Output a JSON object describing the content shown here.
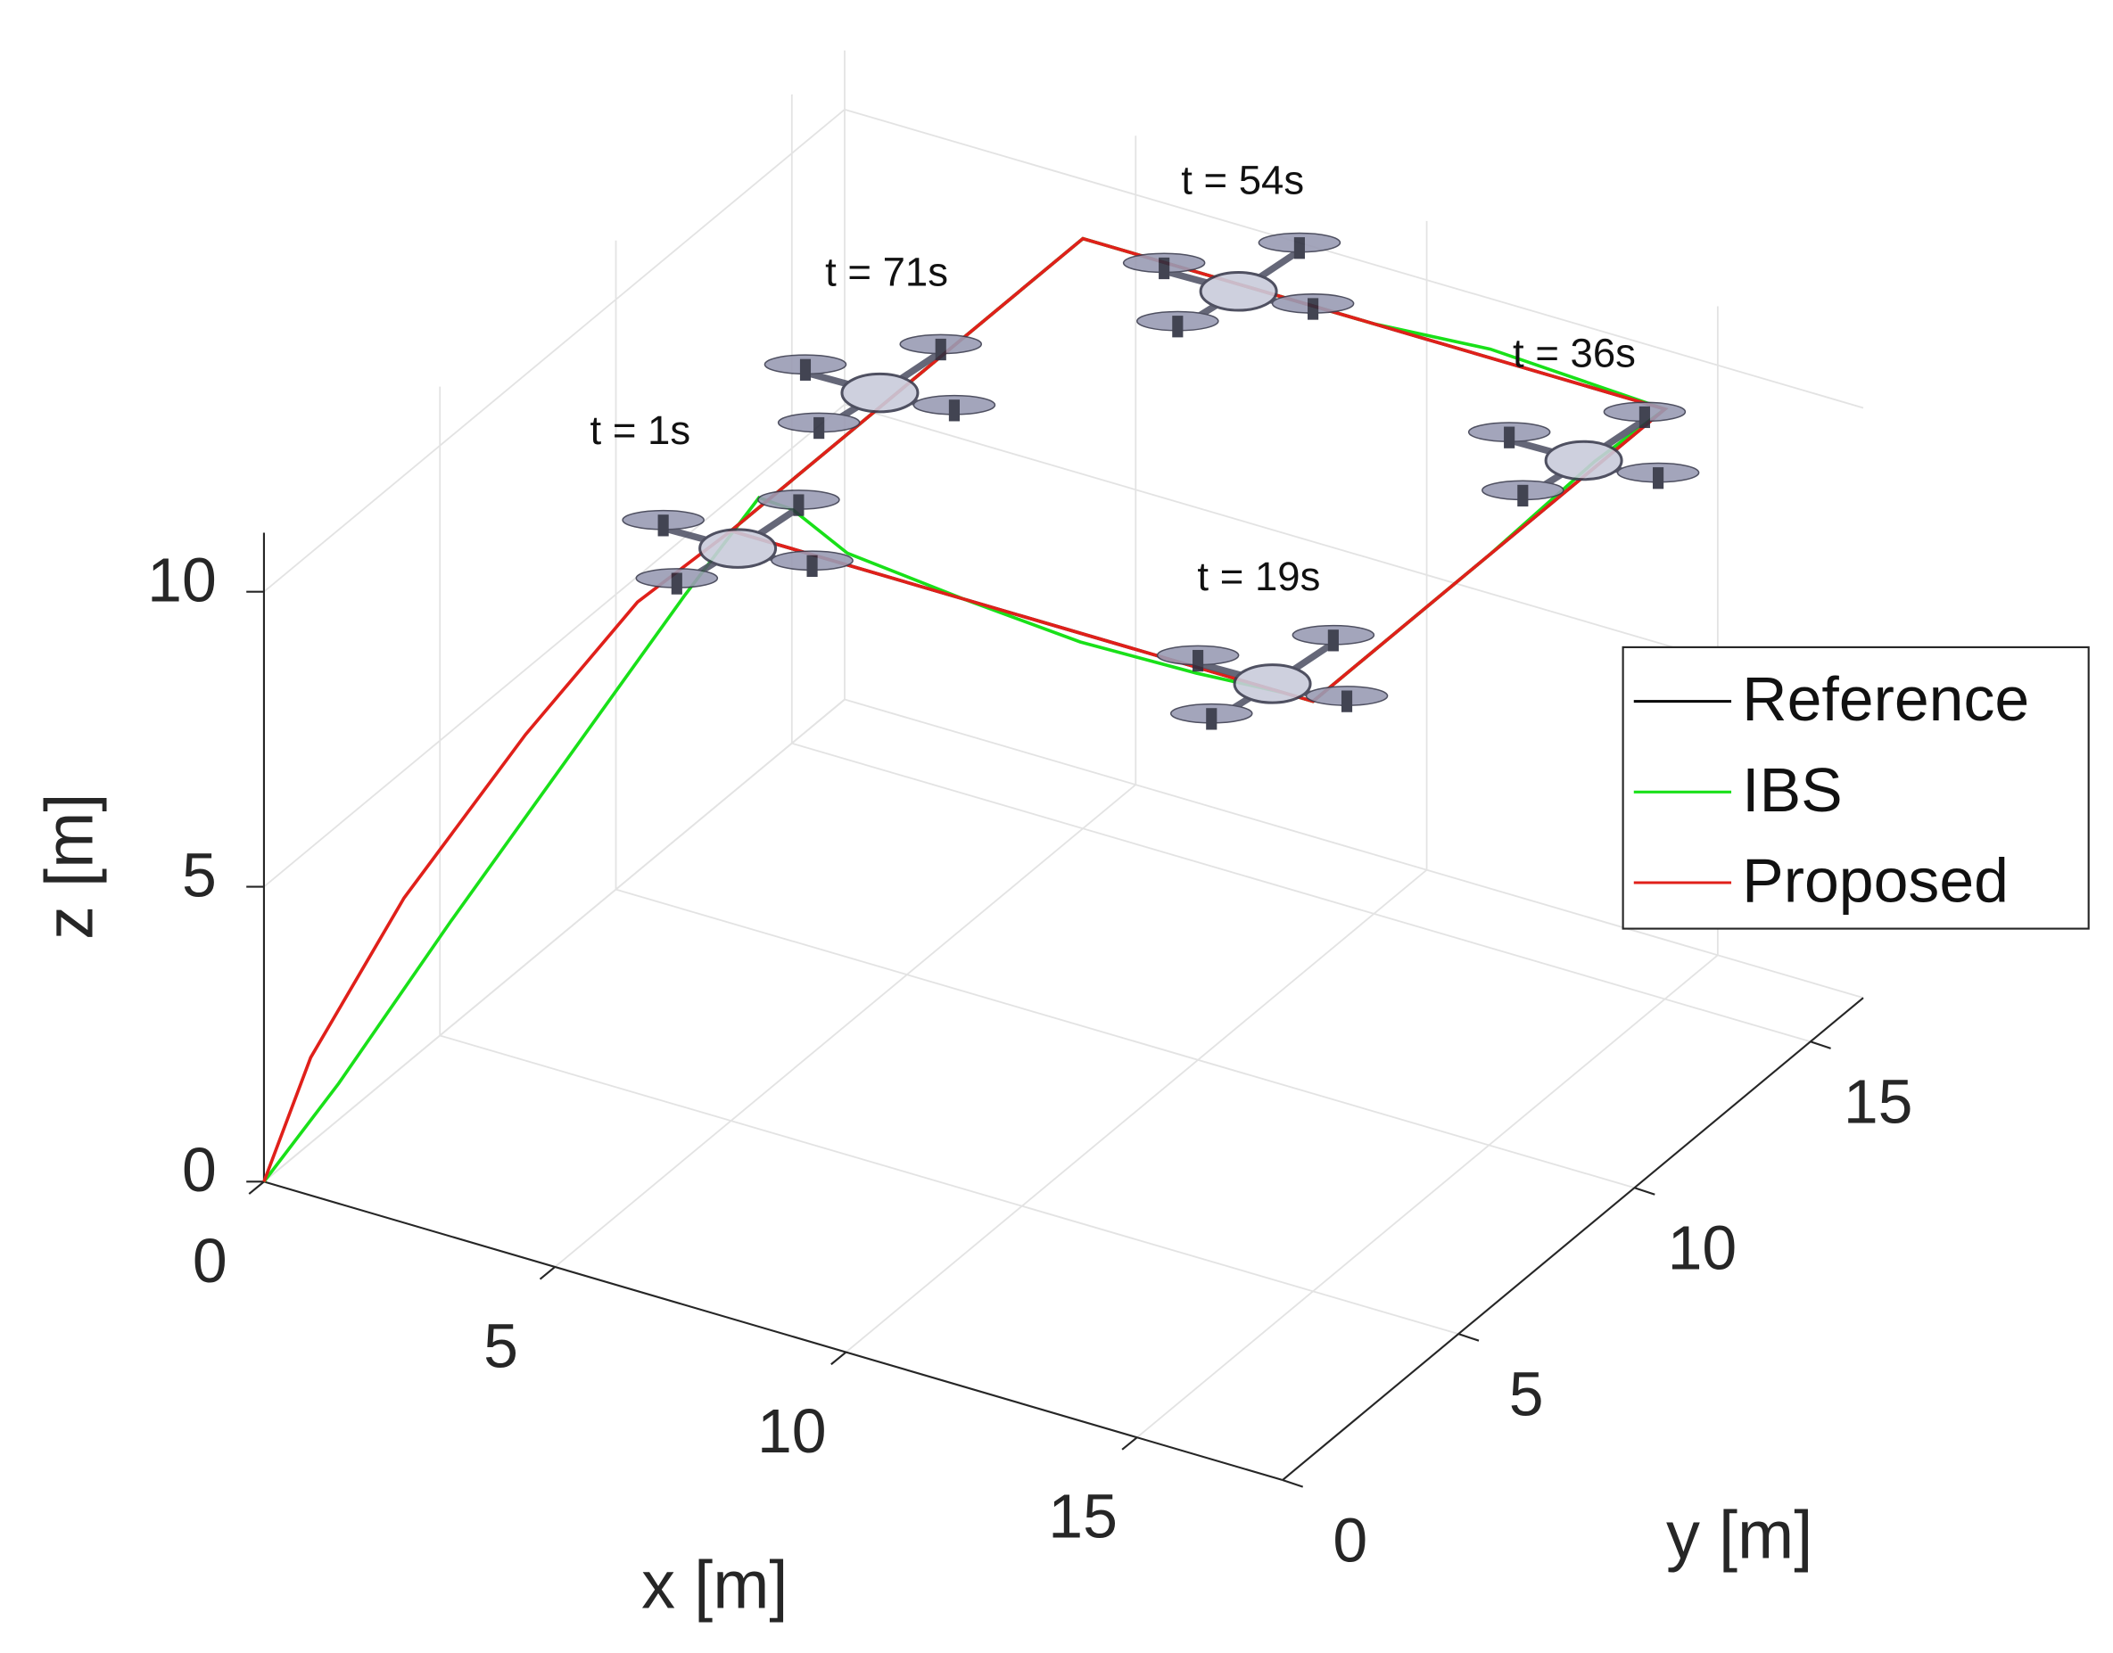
{
  "chart_data": {
    "type": "line3d",
    "xlabel": "x [m]",
    "ylabel": "y [m]",
    "zlabel": "z [m]",
    "xlim": [
      0,
      17.5
    ],
    "ylim": [
      0,
      16.5
    ],
    "zlim": [
      0,
      11
    ],
    "xticks": [
      0,
      5,
      10,
      15
    ],
    "yticks": [
      0,
      5,
      10,
      15
    ],
    "zticks": [
      0,
      5,
      10
    ],
    "grid": true,
    "legend": "east",
    "annotations": [
      "t = 1s",
      "t = 71s",
      "t = 54s",
      "t = 36s",
      "t = 19s"
    ],
    "series": [
      {
        "name": "Reference",
        "color": "#000000",
        "x": [
          5,
          15,
          15,
          5,
          5
        ],
        "y": [
          5,
          5,
          15,
          15,
          5
        ],
        "z": [
          10,
          10,
          10,
          10,
          10
        ]
      },
      {
        "name": "IBS",
        "color": "#19e019",
        "x": [
          0,
          0.8,
          2,
          3.3,
          4.5,
          5.3,
          6,
          7,
          9,
          11,
          13,
          14.5,
          15,
          15,
          15,
          15,
          12,
          10,
          5,
          5,
          5
        ],
        "y": [
          0,
          0.8,
          2,
          3.3,
          4.5,
          5.3,
          5.1,
          5,
          5,
          5,
          5,
          5,
          5,
          10,
          13,
          15,
          15,
          15,
          15,
          10,
          5
        ],
        "z": [
          0,
          1.5,
          4,
          6.6,
          9,
          10.5,
          10.6,
          10.2,
          10,
          9.85,
          9.9,
          10,
          10,
          10,
          10.1,
          10,
          10.15,
          10,
          10,
          10,
          10
        ]
      },
      {
        "name": "Proposed",
        "color": "#e0201a",
        "x": [
          0,
          0.5,
          1.5,
          2.8,
          4,
          5,
          15,
          15,
          5,
          5
        ],
        "y": [
          0,
          0.5,
          1.5,
          2.8,
          4,
          5,
          5,
          15,
          15,
          5
        ],
        "z": [
          0,
          2,
          4.5,
          7,
          9,
          10,
          10,
          10,
          10,
          10
        ]
      }
    ]
  }
}
